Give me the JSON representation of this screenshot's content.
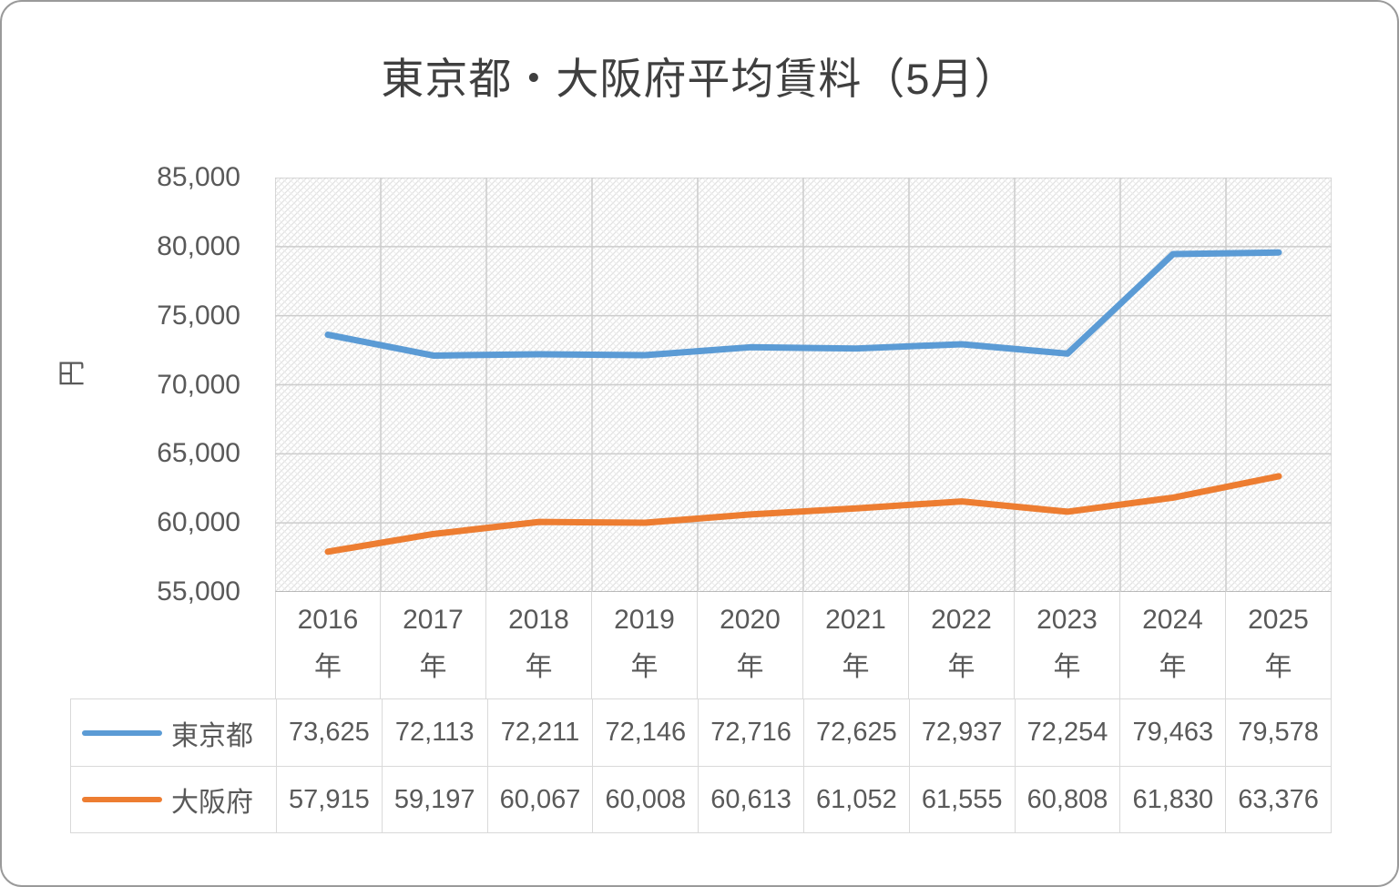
{
  "title": "東京都・大阪府平均賃料（5月）",
  "y_axis_unit": "円",
  "chart_data": {
    "type": "line",
    "title": "東京都・大阪府平均賃料（5月）",
    "categories": [
      "2016",
      "2017",
      "2018",
      "2019",
      "2020",
      "2021",
      "2022",
      "2023",
      "2024",
      "2025"
    ],
    "category_suffix": "年",
    "series": [
      {
        "name": "東京都",
        "color": "#5B9BD5",
        "values": [
          73625,
          72113,
          72211,
          72146,
          72716,
          72625,
          72937,
          72254,
          79463,
          79578
        ]
      },
      {
        "name": "大阪府",
        "color": "#ED7D31",
        "values": [
          57915,
          59197,
          60067,
          60008,
          60613,
          61052,
          61555,
          60808,
          61830,
          63376
        ]
      }
    ],
    "ylabel": "円",
    "ylim": [
      55000,
      85000
    ],
    "ytick_step": 5000,
    "ytick_labels": [
      "85,000",
      "80,000",
      "75,000",
      "70,000",
      "65,000",
      "60,000",
      "55,000"
    ],
    "grid": true,
    "plot_background": "diagonal-hatch",
    "legend_position": "data-table-left"
  }
}
